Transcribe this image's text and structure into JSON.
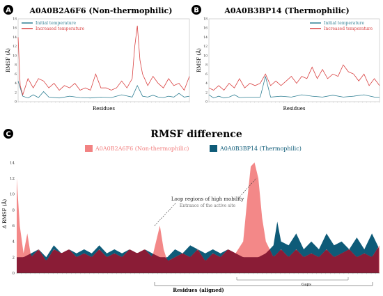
{
  "panels": {
    "a": {
      "badge": "A",
      "title": "A0A0B2A6F6 (Non-thermophilic)"
    },
    "b": {
      "badge": "B",
      "title": "A0A0B3BP14 (Thermophilic)"
    },
    "c": {
      "badge": "C",
      "title": "RMSF difference"
    }
  },
  "colors": {
    "initial": "#2f7f93",
    "increased": "#d94040",
    "non_thermo": "#f28282",
    "thermo": "#0e5b78",
    "overlap": "#8a1c36"
  },
  "chart_data": [
    {
      "type": "line",
      "title": "A0A0B2A6F6 (Non-thermophilic)",
      "xlabel": "Residues",
      "ylabel": "RMSF (Å)",
      "ylim": [
        0,
        18
      ],
      "yticks": [
        "0",
        "2",
        "4",
        "6",
        "8",
        "10",
        "12",
        "14",
        "16",
        "18"
      ],
      "x_range": [
        1,
        330
      ],
      "legend": "top-left",
      "series": [
        {
          "name": "Initial temperature",
          "x": [
            1,
            10,
            20,
            30,
            40,
            50,
            60,
            80,
            100,
            120,
            140,
            160,
            180,
            200,
            220,
            230,
            240,
            250,
            260,
            270,
            280,
            290,
            300,
            310,
            320,
            330
          ],
          "values": [
            4.5,
            1.2,
            0.8,
            1.5,
            0.9,
            2.2,
            1.0,
            0.8,
            1.2,
            0.9,
            0.8,
            1.0,
            0.9,
            1.5,
            1.0,
            3.5,
            1.2,
            1.0,
            1.4,
            1.0,
            0.9,
            1.2,
            1.0,
            1.8,
            1.0,
            1.2
          ]
        },
        {
          "name": "Increased temperature",
          "x": [
            1,
            5,
            10,
            20,
            30,
            40,
            50,
            60,
            70,
            80,
            90,
            100,
            110,
            120,
            130,
            140,
            150,
            160,
            170,
            180,
            190,
            200,
            210,
            220,
            225,
            230,
            235,
            240,
            250,
            260,
            270,
            280,
            290,
            300,
            310,
            320,
            330
          ],
          "values": [
            14,
            3.5,
            1.5,
            5,
            3,
            5,
            4.5,
            3,
            4,
            2.5,
            3.5,
            3,
            4,
            2.5,
            3,
            2.5,
            6,
            3,
            3,
            2.5,
            3,
            4.5,
            3,
            5,
            12,
            16.5,
            9,
            6,
            3.5,
            5.5,
            4,
            3,
            5,
            3.5,
            4,
            2.5,
            5.5
          ]
        }
      ]
    },
    {
      "type": "line",
      "title": "A0A0B3BP14 (Thermophilic)",
      "xlabel": "Residues",
      "ylabel": "RMSF (Å)",
      "ylim": [
        0,
        18
      ],
      "yticks": [
        "0",
        "2",
        "4",
        "6",
        "8",
        "10",
        "12",
        "14",
        "16",
        "18"
      ],
      "x_range": [
        1,
        330
      ],
      "legend": "top-right",
      "series": [
        {
          "name": "Initial temperature",
          "x": [
            1,
            10,
            20,
            30,
            40,
            50,
            60,
            80,
            100,
            110,
            120,
            140,
            160,
            180,
            200,
            220,
            240,
            260,
            280,
            300,
            320,
            330
          ],
          "values": [
            1.5,
            0.8,
            1.2,
            0.8,
            1.0,
            1.5,
            0.9,
            1.0,
            1.0,
            5.5,
            1.0,
            1.2,
            1.0,
            1.5,
            1.2,
            1.0,
            1.4,
            1.0,
            1.2,
            1.5,
            1.0,
            1.0
          ]
        },
        {
          "name": "Increased temperature",
          "x": [
            1,
            10,
            20,
            30,
            40,
            50,
            60,
            70,
            80,
            90,
            100,
            110,
            120,
            130,
            140,
            150,
            160,
            170,
            180,
            190,
            200,
            210,
            220,
            230,
            240,
            250,
            260,
            270,
            280,
            290,
            300,
            310,
            320,
            330
          ],
          "values": [
            3,
            2.5,
            3.5,
            2.5,
            4,
            3,
            5,
            3,
            4,
            3.5,
            4,
            6,
            3.5,
            4.5,
            3.5,
            4.5,
            5.5,
            4,
            5.5,
            5,
            7.5,
            5,
            7,
            5,
            6,
            5.5,
            8,
            6.5,
            6,
            4.5,
            6,
            3.5,
            5,
            3.5
          ]
        }
      ]
    },
    {
      "type": "area",
      "title": "RMSF difference",
      "xlabel": "Residues (aligned)",
      "ylabel": "Δ RMSF (Å)",
      "ylim": [
        0,
        15
      ],
      "yticks": [
        "0",
        "2",
        "4",
        "6",
        "8",
        "10",
        "12",
        "14"
      ],
      "x_range": [
        1,
        480
      ],
      "legend": "top-center",
      "annotations": [
        {
          "text": "Loop regions of high mobility",
          "subtext": "Entrance of the active site"
        },
        {
          "text": "Gaps"
        }
      ],
      "series": [
        {
          "name": "A0A0B2A6F6 (Non-thermophilic)",
          "x": [
            1,
            5,
            10,
            15,
            20,
            30,
            40,
            50,
            60,
            70,
            80,
            90,
            100,
            110,
            120,
            130,
            140,
            150,
            160,
            170,
            180,
            185,
            190,
            195,
            200,
            210,
            220,
            230,
            240,
            250,
            260,
            270,
            280,
            290,
            300,
            305,
            310,
            315,
            320,
            325,
            330,
            335,
            340,
            345,
            350,
            360,
            370,
            380,
            390,
            400,
            410,
            420,
            430,
            440,
            450,
            460,
            470,
            480
          ],
          "values": [
            12,
            6,
            2.5,
            5,
            2,
            3,
            1.5,
            3,
            2.5,
            3,
            2,
            2.5,
            2,
            3,
            2,
            2.5,
            2,
            3,
            2.5,
            3,
            2,
            4,
            6,
            3,
            1.5,
            2,
            2.5,
            2,
            3,
            1.5,
            2.5,
            2,
            3,
            2.5,
            4,
            9,
            13.5,
            14,
            12,
            7,
            4,
            3,
            2,
            2.5,
            3,
            2,
            3,
            2,
            2.5,
            2,
            3,
            2,
            2.5,
            3,
            2,
            2.5,
            2,
            3.5
          ]
        },
        {
          "name": "A0A0B3BP14 (Thermophilic)",
          "x": [
            1,
            10,
            20,
            30,
            40,
            50,
            60,
            70,
            80,
            90,
            100,
            110,
            120,
            130,
            140,
            150,
            160,
            170,
            180,
            190,
            200,
            210,
            220,
            230,
            240,
            250,
            260,
            270,
            280,
            290,
            300,
            310,
            320,
            330,
            340,
            345,
            350,
            360,
            370,
            380,
            390,
            400,
            410,
            420,
            430,
            440,
            450,
            460,
            470,
            480
          ],
          "values": [
            2,
            2,
            2.5,
            3,
            2,
            3.5,
            2.5,
            3,
            2.5,
            3,
            2.5,
            3.5,
            2.5,
            3,
            2.5,
            3,
            2.5,
            3,
            2.5,
            2,
            2,
            3,
            2.5,
            3.5,
            3,
            2.5,
            3,
            2.5,
            3,
            2.5,
            2,
            2,
            2,
            2.5,
            3.5,
            6.5,
            4,
            3.5,
            5,
            3,
            4,
            3,
            5,
            3.5,
            4,
            3,
            4.5,
            3,
            5,
            3
          ]
        }
      ]
    }
  ]
}
